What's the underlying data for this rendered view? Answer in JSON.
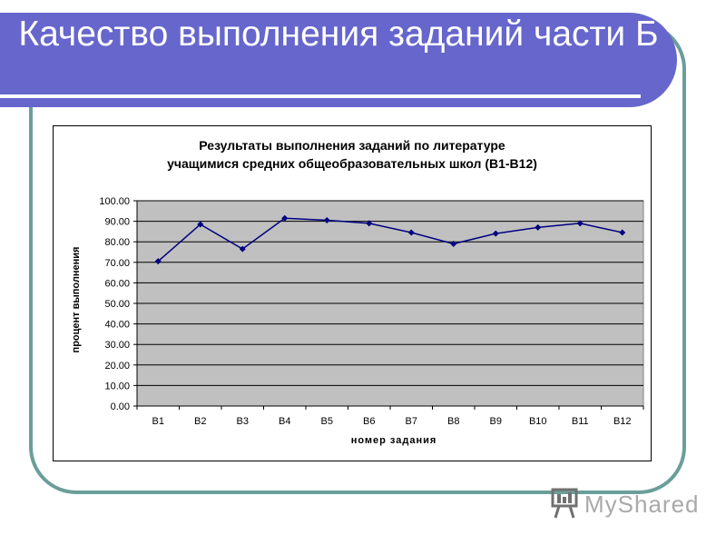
{
  "slide": {
    "title": "Качество выполнения заданий части Б"
  },
  "logo": {
    "text": "MyShared"
  },
  "colors": {
    "title_bar": "#6666cc",
    "frame": "#6b9e9a",
    "plot_area": "#c0c0c0",
    "series": "#000080"
  },
  "chart_data": {
    "type": "line",
    "title_line1": "Результаты выполнения заданий по литературе",
    "title_line2": "учащимися средних общеобразовательных школ (В1-В12)",
    "xlabel": "номер задания",
    "ylabel": "процент выполнения",
    "categories": [
      "В1",
      "В2",
      "В3",
      "В4",
      "В5",
      "В6",
      "В7",
      "В8",
      "В9",
      "В10",
      "В11",
      "В12"
    ],
    "values": [
      70.5,
      88.5,
      76.5,
      91.5,
      90.5,
      89.0,
      84.5,
      79.0,
      84.0,
      87.0,
      89.0,
      84.5
    ],
    "ylim": [
      0,
      100
    ],
    "yticks": [
      "0.00",
      "10.00",
      "20.00",
      "30.00",
      "40.00",
      "50.00",
      "60.00",
      "70.00",
      "80.00",
      "90.00",
      "100.00"
    ],
    "grid": true,
    "legend": "none"
  }
}
